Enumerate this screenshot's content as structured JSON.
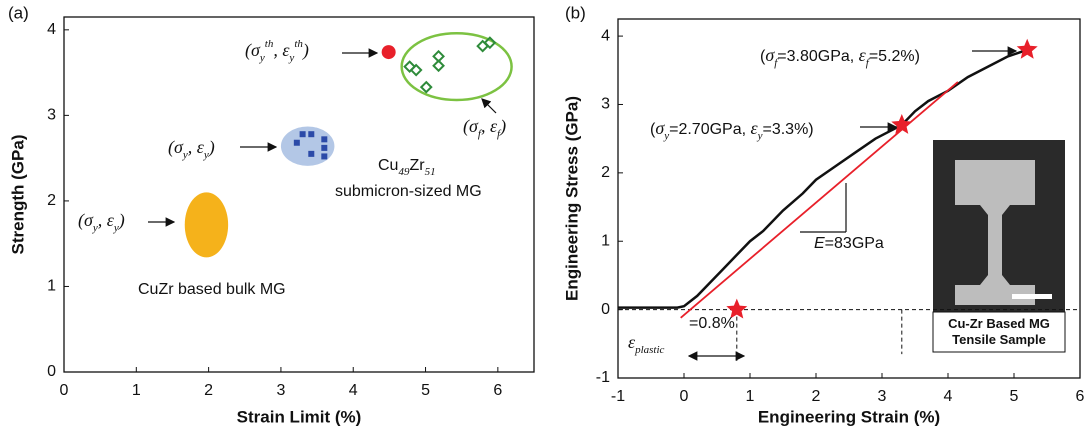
{
  "chart_data": [
    {
      "type": "scatter",
      "panel_label": "(a)",
      "x_label": "Strain Limit (%)",
      "y_label": "Strength (GPa)",
      "xlim": [
        0,
        6.5
      ],
      "ylim": [
        0,
        4.15
      ],
      "xticks": [
        0,
        1,
        2,
        3,
        4,
        5,
        6
      ],
      "yticks": [
        0,
        1,
        2,
        3,
        4
      ],
      "regions": [
        {
          "cx": 1.97,
          "cy": 1.72,
          "rx": 0.3,
          "ry": 0.38,
          "fill": "#f5b21b",
          "stroke": "none"
        },
        {
          "cx": 3.37,
          "cy": 2.64,
          "rx": 0.37,
          "ry": 0.23,
          "fill": "#b3c7e6",
          "stroke": "none"
        },
        {
          "cx": 5.43,
          "cy": 3.57,
          "rx": 0.76,
          "ry": 0.39,
          "fill": "none",
          "stroke": "#7cc242"
        }
      ],
      "series": [
        {
          "marker": "square",
          "color": "#2b4aa8",
          "x": [
            3.3,
            3.42,
            3.22,
            3.6,
            3.6,
            3.6,
            3.42
          ],
          "y": [
            2.78,
            2.78,
            2.68,
            2.72,
            2.62,
            2.52,
            2.55
          ]
        },
        {
          "marker": "diamond",
          "color": "#2e8b3a",
          "x": [
            5.18,
            4.78,
            4.87,
            5.01,
            5.18,
            5.79,
            5.89
          ],
          "y": [
            3.58,
            3.57,
            3.53,
            3.33,
            3.69,
            3.81,
            3.85
          ]
        },
        {
          "marker": "circle",
          "color": "#e8202a",
          "x": [
            4.49
          ],
          "y": [
            3.74
          ]
        }
      ],
      "annotations": [
        [
          {
            "text": "(σ"
          },
          {
            "sub": "y"
          },
          {
            "sup": "th"
          },
          {
            "text": ", ε"
          },
          {
            "sub": "y"
          },
          {
            "sup": "th"
          },
          {
            "text": ")"
          }
        ],
        [
          {
            "text": "(σ"
          },
          {
            "sub": "y"
          },
          {
            "text": ", ε"
          },
          {
            "sub": "y"
          },
          {
            "text": ")"
          }
        ],
        [
          {
            "text": "(σ"
          },
          {
            "sub": "f"
          },
          {
            "text": ", ε"
          },
          {
            "sub": "f"
          },
          {
            "text": ")"
          }
        ],
        [
          {
            "plain": "Cu"
          },
          {
            "sub": "49"
          },
          {
            "plain": "Zr"
          },
          {
            "sub": "51"
          }
        ],
        [
          {
            "plain": "submicron-sized MG"
          }
        ],
        [
          {
            "text": "(σ"
          },
          {
            "sub": "y"
          },
          {
            "text": ", ε"
          },
          {
            "sub": "y"
          },
          {
            "text": ")"
          }
        ],
        [
          {
            "plain": "CuZr based bulk MG"
          }
        ]
      ]
    },
    {
      "type": "line",
      "panel_label": "(b)",
      "x_label": "Engineering Strain (%)",
      "y_label": "Engineering Stress (GPa)",
      "xlim": [
        -1,
        6
      ],
      "ylim": [
        -1,
        4.25
      ],
      "xticks": [
        -1,
        0,
        1,
        2,
        3,
        4,
        5,
        6
      ],
      "yticks": [
        -1,
        0,
        1,
        2,
        3,
        4
      ],
      "curve": {
        "color": "#111111",
        "x": [
          -1,
          -0.5,
          -0.1,
          0,
          0.2,
          0.4,
          0.6,
          0.8,
          1,
          1.2,
          1.5,
          1.8,
          2,
          2.3,
          2.6,
          2.9,
          3.1,
          3.3,
          3.5,
          3.7,
          4,
          4.3,
          4.6,
          4.9,
          5.2
        ],
        "y": [
          0.03,
          0.03,
          0.03,
          0.05,
          0.2,
          0.4,
          0.6,
          0.8,
          1.0,
          1.15,
          1.45,
          1.7,
          1.9,
          2.1,
          2.3,
          2.5,
          2.6,
          2.7,
          2.9,
          3.05,
          3.2,
          3.4,
          3.55,
          3.7,
          3.8
        ]
      },
      "fit": {
        "color": "#e8202a",
        "x": [
          -0.05,
          4.15
        ],
        "y": [
          -0.12,
          3.33
        ]
      },
      "stars": {
        "color": "#e8202a",
        "x": [
          3.3,
          5.2,
          0.8
        ],
        "y": [
          2.7,
          3.8,
          0
        ]
      },
      "annotations": [
        [
          {
            "plain": "("
          },
          {
            "text": "σ"
          },
          {
            "sub": "f"
          },
          {
            "plain": "=3.80GPa,  "
          },
          {
            "text": "ε"
          },
          {
            "sub": "f"
          },
          {
            "plain": "=5.2%)"
          }
        ],
        [
          {
            "plain": "("
          },
          {
            "text": "σ"
          },
          {
            "sub": "y"
          },
          {
            "plain": "=2.70GPa,  "
          },
          {
            "text": "ε"
          },
          {
            "sub": "y"
          },
          {
            "plain": "=3.3%)"
          }
        ],
        [
          {
            "italic": "E"
          },
          {
            "plain": "=83GPa"
          }
        ],
        [
          {
            "text": "ε"
          },
          {
            "sub": "plastic"
          }
        ],
        [
          {
            "plain": "=0.8%"
          }
        ],
        [
          {
            "bold": "Cu-Zr Based MG"
          }
        ],
        [
          {
            "bold": "Tensile Sample"
          }
        ]
      ]
    }
  ]
}
